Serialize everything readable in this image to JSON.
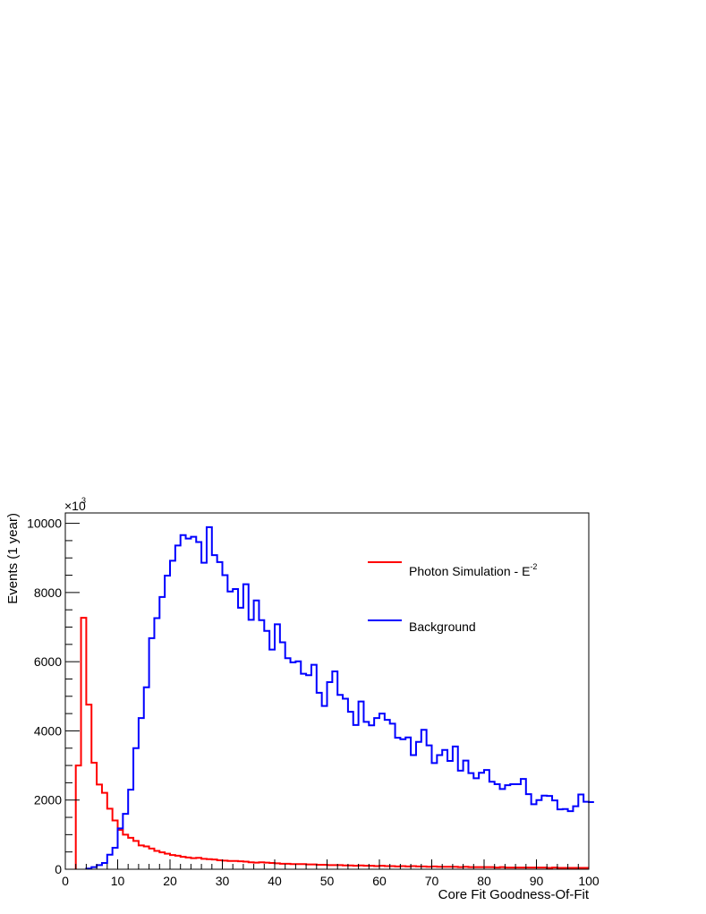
{
  "chart_data": {
    "type": "histogram",
    "xlabel": "Core Fit Goodness-Of-Fit",
    "ylabel": "Events (1 year)",
    "y_multiplier": {
      "base": "×10",
      "exponent": "3"
    },
    "xlim": [
      0,
      100
    ],
    "ylim": [
      0,
      10300
    ],
    "x_ticks": [
      0,
      10,
      20,
      30,
      40,
      50,
      60,
      70,
      80,
      90,
      100
    ],
    "y_ticks": [
      0,
      2000,
      4000,
      6000,
      8000,
      10000
    ],
    "bin_width": 1,
    "legend_position": "top-right",
    "series": [
      {
        "name": "Photon Simulation - E",
        "name_superscript": "-2",
        "color": "#ff0000",
        "bin_edges_start": 2,
        "values": [
          3000,
          7270,
          4760,
          3080,
          2450,
          2210,
          1750,
          1410,
          1140,
          1000,
          910,
          820,
          690,
          660,
          600,
          530,
          490,
          450,
          410,
          390,
          360,
          340,
          320,
          330,
          300,
          290,
          280,
          260,
          250,
          240,
          240,
          230,
          220,
          200,
          190,
          200,
          190,
          180,
          170,
          160,
          160,
          150,
          150,
          150,
          140,
          140,
          130,
          130,
          120,
          120,
          120,
          110,
          110,
          100,
          110,
          100,
          100,
          90,
          100,
          90,
          90,
          80,
          90,
          80,
          90,
          80,
          80,
          70,
          80,
          70,
          70,
          70,
          70,
          60,
          70,
          60,
          60,
          60,
          60,
          60,
          50,
          60,
          50,
          50,
          50,
          50,
          50,
          50,
          50,
          50,
          40,
          50,
          40,
          40,
          40,
          40,
          40,
          40
        ]
      },
      {
        "name": "Background",
        "color": "#0000ff",
        "bin_edges_start": 4,
        "values": [
          20,
          60,
          120,
          180,
          420,
          620,
          1180,
          1600,
          2300,
          3500,
          4370,
          5260,
          6680,
          7260,
          7870,
          8490,
          8920,
          9360,
          9660,
          9560,
          9610,
          9460,
          8860,
          9890,
          9080,
          8880,
          8500,
          8030,
          8100,
          7560,
          8240,
          7210,
          7770,
          7200,
          6890,
          6350,
          7080,
          6560,
          6100,
          5980,
          6010,
          5650,
          5610,
          5910,
          5100,
          4720,
          5410,
          5720,
          5040,
          4930,
          4550,
          4170,
          4850,
          4260,
          4160,
          4370,
          4500,
          4320,
          4210,
          3800,
          3760,
          3810,
          3300,
          3680,
          4030,
          3580,
          3070,
          3300,
          3450,
          3130,
          3550,
          2850,
          3140,
          2780,
          2630,
          2790,
          2870,
          2530,
          2460,
          2320,
          2430,
          2460,
          2460,
          2610,
          2170,
          1880,
          2000,
          2130,
          2120,
          1990,
          1730,
          1740,
          1680,
          1820,
          2160,
          1950,
          1940
        ]
      }
    ]
  }
}
